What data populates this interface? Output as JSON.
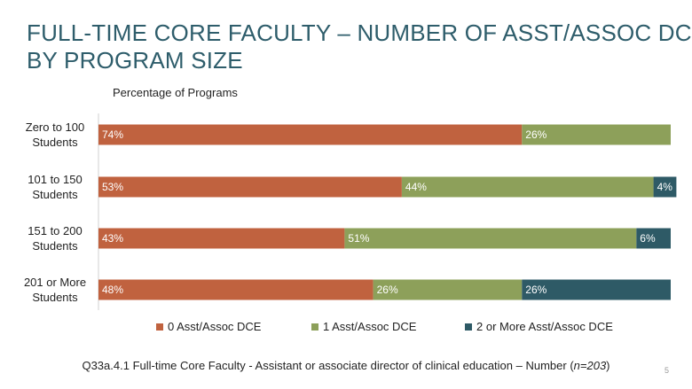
{
  "slide": {
    "title_line1": "FULL-TIME CORE FACULTY – NUMBER OF ASST/ASSOC DCE",
    "title_line2": "BY PROGRAM SIZE",
    "footnote_main": "Q33a.4.1 Full-time Core Faculty - Assistant or associate director of clinical education – Number (",
    "footnote_n": "n=203",
    "footnote_close": ")",
    "page_number": "5"
  },
  "chart_data": {
    "type": "bar",
    "orientation": "horizontal",
    "stacked": "percent",
    "title": "",
    "axis_caption": "Percentage of Programs",
    "categories": [
      [
        "Zero to 100",
        "Students"
      ],
      [
        "101 to 150",
        "Students"
      ],
      [
        "151 to 200",
        "Students"
      ],
      [
        "201 or More",
        "Students"
      ]
    ],
    "series": [
      {
        "name": "0 Asst/Assoc DCE",
        "color": "#c0623f",
        "values": [
          74,
          53,
          43,
          48
        ],
        "labels": [
          "74%",
          "53%",
          "43%",
          "48%"
        ]
      },
      {
        "name": "1 Asst/Assoc DCE",
        "color": "#8da05a",
        "values": [
          26,
          44,
          51,
          26
        ],
        "labels": [
          "26%",
          "44%",
          "51%",
          "26%"
        ]
      },
      {
        "name": "2 or More Asst/Assoc DCE",
        "color": "#2e5a66",
        "values": [
          0,
          4,
          6,
          26
        ],
        "labels": [
          "",
          "4%",
          "6%",
          "26%"
        ]
      }
    ],
    "xlim": [
      0,
      100
    ],
    "legend_position": "bottom"
  }
}
